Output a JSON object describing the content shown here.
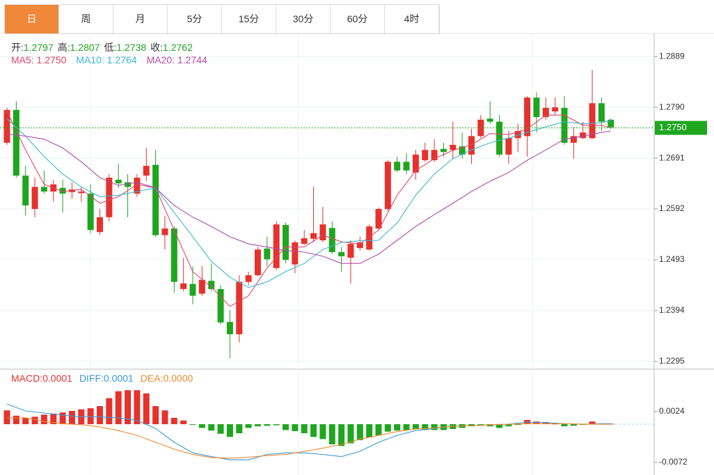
{
  "tabs": [
    {
      "label": "日",
      "active": true
    },
    {
      "label": "周"
    },
    {
      "label": "月"
    },
    {
      "label": "5分"
    },
    {
      "label": "15分"
    },
    {
      "label": "30分"
    },
    {
      "label": "60分"
    },
    {
      "label": "4时"
    }
  ],
  "chart_data": [
    {
      "type": "candlestick",
      "ohlc_header": [
        {
          "label": "开:",
          "value": "1.2797"
        },
        {
          "label": "高:",
          "value": "1.2807"
        },
        {
          "label": "低:",
          "value": "1.2738"
        },
        {
          "label": "收:",
          "value": "1.2762"
        }
      ],
      "up_color": "#e5322d",
      "down_color": "#1fa61f",
      "ylim": [
        1.228,
        1.2934
      ],
      "yticks": [
        1.2889,
        {
          "value": 1.279,
          "label": "1.2790"
        },
        1.2691,
        1.2592,
        1.2493,
        1.2394,
        1.2295
      ],
      "grid": true,
      "last_price": {
        "value": 1.275,
        "label": "1.2750"
      },
      "open": [
        1.2721,
        1.2785,
        1.2657,
        1.2592,
        1.2635,
        1.2626,
        1.2633,
        1.2625,
        1.2623,
        1.2622,
        1.2547,
        1.2576,
        1.2649,
        1.2644,
        1.2622,
        1.2657,
        1.2678,
        1.2541,
        1.2554,
        1.2436,
        1.2446,
        1.2427,
        1.2452,
        1.2436,
        1.2372,
        1.2348,
        1.245,
        1.2463,
        1.2515,
        1.2477,
        1.2561,
        1.2484,
        1.2524,
        1.2534,
        1.2531,
        1.2555,
        1.2508,
        1.2497,
        1.2516,
        1.2513,
        1.2554,
        1.2592,
        1.2684,
        1.2684,
        1.2663,
        1.2687,
        1.2687,
        1.2709,
        1.2707,
        1.2714,
        1.2698,
        1.2734,
        1.2768,
        1.2762,
        1.2698,
        1.273,
        1.2734,
        1.2809,
        1.2771,
        1.2782,
        1.2789,
        1.2721,
        1.273,
        1.273,
        1.2798,
        1.2766
      ],
      "high": [
        1.2789,
        1.2802,
        1.2676,
        1.2653,
        1.2667,
        1.2649,
        1.2649,
        1.2644,
        1.2635,
        1.264,
        1.2592,
        1.266,
        1.268,
        1.266,
        1.266,
        1.2711,
        1.2707,
        1.2579,
        1.2558,
        1.2497,
        1.248,
        1.2481,
        1.2486,
        1.2443,
        1.2395,
        1.2463,
        1.247,
        1.2518,
        1.2538,
        1.2568,
        1.2565,
        1.2531,
        1.2551,
        1.2635,
        1.2596,
        1.2568,
        1.2518,
        1.2531,
        1.2538,
        1.2562,
        1.2595,
        1.2687,
        1.2694,
        1.2701,
        1.2707,
        1.2721,
        1.2728,
        1.2721,
        1.2762,
        1.2741,
        1.2748,
        1.2775,
        1.2802,
        1.2775,
        1.2744,
        1.2758,
        1.2812,
        1.2819,
        1.2809,
        1.2809,
        1.2812,
        1.2752,
        1.2762,
        1.2863,
        1.2809,
        1.2768
      ],
      "low": [
        1.2717,
        1.2653,
        1.2579,
        1.2576,
        1.2622,
        1.2606,
        1.2585,
        1.2612,
        1.2606,
        1.2545,
        1.2542,
        1.2568,
        1.2633,
        1.2576,
        1.2616,
        1.2646,
        1.2538,
        1.2513,
        1.2429,
        1.2432,
        1.2406,
        1.2423,
        1.2432,
        1.2367,
        1.2301,
        1.2332,
        1.2443,
        1.2461,
        1.248,
        1.2473,
        1.2486,
        1.2467,
        1.2522,
        1.2527,
        1.2527,
        1.2504,
        1.247,
        1.2447,
        1.2511,
        1.2511,
        1.2551,
        1.2588,
        1.2664,
        1.266,
        1.2649,
        1.2684,
        1.2684,
        1.2694,
        1.269,
        1.269,
        1.268,
        1.273,
        1.2758,
        1.2694,
        1.268,
        1.2703,
        1.2694,
        1.2741,
        1.2766,
        1.2775,
        1.2717,
        1.269,
        1.2728,
        1.2728,
        1.2744,
        1.2748
      ],
      "close": [
        1.2785,
        1.2657,
        1.2599,
        1.2635,
        1.2626,
        1.264,
        1.2622,
        1.263,
        1.2626,
        1.2551,
        1.2576,
        1.2653,
        1.2642,
        1.2635,
        1.2653,
        1.2676,
        1.2541,
        1.2554,
        1.245,
        1.2447,
        1.2423,
        1.2454,
        1.2436,
        1.2371,
        1.2348,
        1.245,
        1.2463,
        1.2513,
        1.2494,
        1.2562,
        1.2493,
        1.2527,
        1.2535,
        1.2545,
        1.2562,
        1.2508,
        1.25,
        1.2524,
        1.2527,
        1.2558,
        1.2592,
        1.2684,
        1.2667,
        1.2667,
        1.2698,
        1.2707,
        1.2707,
        1.2703,
        1.2717,
        1.2698,
        1.2734,
        1.2766,
        1.2762,
        1.2698,
        1.273,
        1.2744,
        1.2809,
        1.2771,
        1.2789,
        1.279,
        1.2721,
        1.2734,
        1.2741,
        1.2798,
        1.2762,
        1.2751
      ],
      "series": [
        {
          "name": "MA5: 1.2750",
          "color": "#e0476e",
          "x": [
            0,
            2,
            4,
            6,
            8,
            10,
            12,
            14,
            16,
            18,
            20,
            22,
            24,
            26,
            28,
            30,
            32,
            34,
            36,
            38,
            40,
            42,
            44,
            46,
            48,
            50,
            52,
            54,
            56,
            58,
            60,
            62,
            64,
            65
          ],
          "values": [
            1.2782,
            1.2707,
            1.264,
            1.2626,
            1.263,
            1.2603,
            1.2616,
            1.264,
            1.2633,
            1.2551,
            1.247,
            1.244,
            1.2402,
            1.2423,
            1.2477,
            1.2518,
            1.2518,
            1.2541,
            1.2528,
            1.2524,
            1.2551,
            1.2619,
            1.2667,
            1.269,
            1.2706,
            1.2717,
            1.2739,
            1.2737,
            1.2748,
            1.2775,
            1.2775,
            1.2755,
            1.2755,
            1.275
          ]
        },
        {
          "name": "MA10: 1.2764",
          "color": "#3cb6cf",
          "x": [
            0,
            2,
            4,
            6,
            8,
            10,
            12,
            14,
            16,
            18,
            20,
            22,
            24,
            26,
            28,
            30,
            32,
            34,
            36,
            38,
            40,
            42,
            44,
            46,
            48,
            50,
            52,
            54,
            56,
            58,
            60,
            62,
            64,
            65
          ],
          "values": [
            1.2768,
            1.2734,
            1.2694,
            1.266,
            1.2635,
            1.2616,
            1.2619,
            1.2626,
            1.2633,
            1.2585,
            1.2538,
            1.249,
            1.2459,
            1.2439,
            1.245,
            1.247,
            1.2486,
            1.2513,
            1.2527,
            1.253,
            1.2531,
            1.2565,
            1.2619,
            1.266,
            1.269,
            1.2707,
            1.2721,
            1.273,
            1.2741,
            1.2752,
            1.2762,
            1.2758,
            1.276,
            1.2764
          ]
        },
        {
          "name": "MA20: 1.2744",
          "color": "#b04cae",
          "x": [
            0,
            2,
            4,
            6,
            8,
            10,
            12,
            14,
            16,
            18,
            20,
            22,
            24,
            26,
            28,
            30,
            32,
            34,
            36,
            38,
            40,
            42,
            44,
            46,
            48,
            50,
            52,
            54,
            56,
            58,
            60,
            62,
            64,
            65
          ],
          "values": [
            1.2738,
            1.2734,
            1.2728,
            1.2711,
            1.2684,
            1.2653,
            1.2638,
            1.2644,
            1.2633,
            1.2599,
            1.2576,
            1.2558,
            1.2538,
            1.2524,
            1.2518,
            1.2511,
            1.2508,
            1.25,
            1.2486,
            1.2486,
            1.2504,
            1.2531,
            1.2558,
            1.2581,
            1.2603,
            1.2626,
            1.2646,
            1.2663,
            1.2687,
            1.2707,
            1.2728,
            1.2734,
            1.2741,
            1.2744
          ]
        }
      ]
    },
    {
      "type": "macd",
      "ylim": [
        -0.0093,
        0.0101
      ],
      "yticks": [
        0.0024,
        -0.0072
      ],
      "histogram": {
        "name": "MACD:0.0001",
        "color": "#e5322d",
        "negative_color": "#1fa61f",
        "values": [
          0.0026,
          0.0016,
          0.0012,
          0.0014,
          0.0018,
          0.002,
          0.0022,
          0.0025,
          0.0028,
          0.003,
          0.0034,
          0.0049,
          0.0062,
          0.0064,
          0.0064,
          0.0058,
          0.0034,
          0.0026,
          0.0012,
          0.0007,
          -0.0001,
          -0.0007,
          -0.0012,
          -0.0018,
          -0.0024,
          -0.0017,
          -0.0007,
          -0.0004,
          -0.0003,
          -0.0002,
          -0.0011,
          -0.0013,
          -0.0017,
          -0.0024,
          -0.0028,
          -0.0038,
          -0.0041,
          -0.0036,
          -0.003,
          -0.0025,
          -0.0021,
          -0.0014,
          -0.0012,
          -0.0011,
          -0.0009,
          -0.0011,
          -0.0011,
          -0.0011,
          -0.0009,
          -0.0007,
          -0.0004,
          -0.0003,
          -0.0004,
          -0.0007,
          -0.0004,
          -0.0001,
          0.0008,
          0.0005,
          0.0004,
          0.0001,
          -0.0004,
          -0.0003,
          -0.0001,
          0.0005,
          0.0001,
          0.0001
        ]
      },
      "series": [
        {
          "name": "DIFF:0.0001",
          "color": "#3a9ad9",
          "x": [
            0,
            2,
            4,
            6,
            8,
            10,
            12,
            14,
            16,
            18,
            20,
            22,
            24,
            26,
            28,
            30,
            32,
            34,
            36,
            38,
            40,
            42,
            44,
            46,
            48,
            50,
            52,
            54,
            56,
            58,
            60,
            62,
            64,
            65
          ],
          "values": [
            0.0038,
            0.0025,
            0.0021,
            0.0017,
            0.0014,
            0.0014,
            0.0012,
            0.0007,
            -0.0008,
            -0.0034,
            -0.0054,
            -0.0061,
            -0.0067,
            -0.0067,
            -0.0057,
            -0.0054,
            -0.0054,
            -0.0057,
            -0.0061,
            -0.0051,
            -0.0034,
            -0.0021,
            -0.0012,
            -0.0008,
            -0.0004,
            -0.0003,
            -0.0001,
            0,
            0.0004,
            0.0003,
            0.0001,
            0,
            0.0001,
            0.0001
          ]
        },
        {
          "name": "DEA:0.0000",
          "color": "#ef8a2e",
          "x": [
            0,
            2,
            4,
            6,
            8,
            10,
            12,
            14,
            16,
            18,
            20,
            22,
            24,
            26,
            28,
            30,
            32,
            34,
            36,
            38,
            40,
            42,
            44,
            46,
            48,
            50,
            52,
            54,
            56,
            58,
            60,
            62,
            64,
            65
          ],
          "values": [
            0.0012,
            0.0012,
            0.0005,
            0.0001,
            -0.0001,
            -0.0005,
            -0.0012,
            -0.0021,
            -0.0034,
            -0.0047,
            -0.0057,
            -0.0063,
            -0.0064,
            -0.0062,
            -0.0059,
            -0.0057,
            -0.0051,
            -0.0045,
            -0.0038,
            -0.0028,
            -0.0021,
            -0.0014,
            -0.0009,
            -0.0007,
            -0.0004,
            -0.0003,
            -0.0001,
            0,
            0.0001,
            0.0001,
            0.0001,
            0,
            0,
            0
          ]
        }
      ]
    }
  ]
}
